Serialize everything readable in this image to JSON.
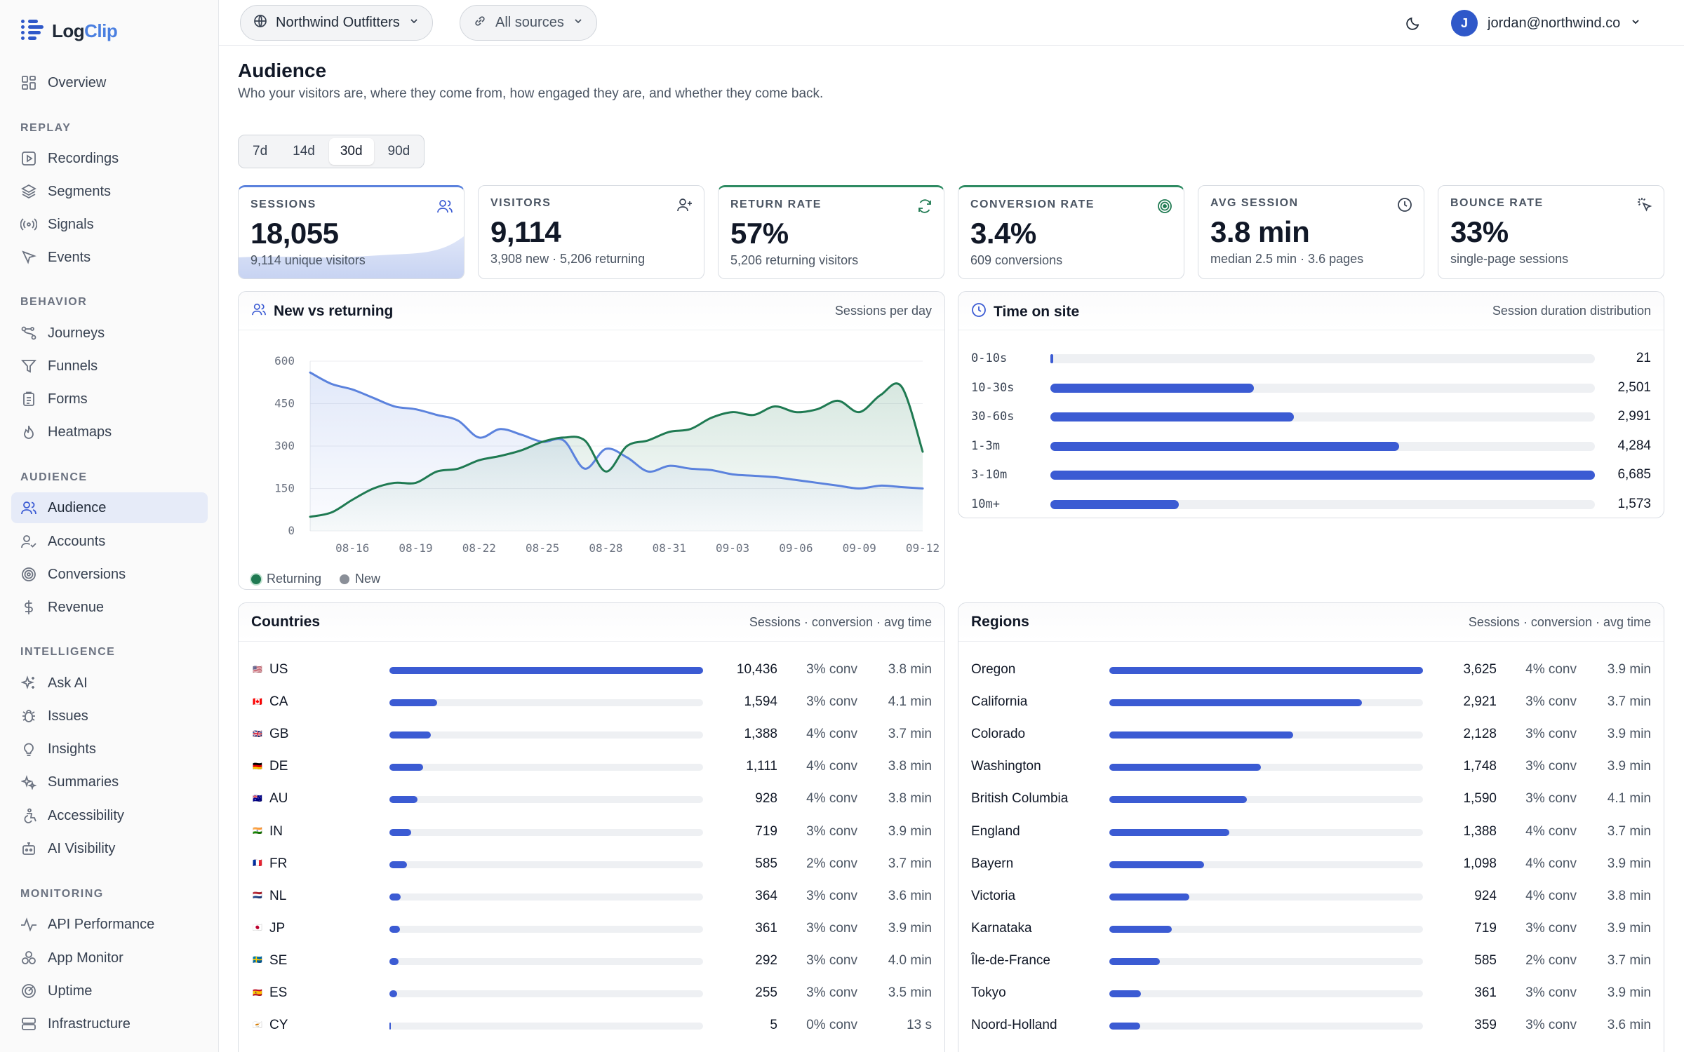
{
  "app": {
    "name_part1": "Log",
    "name_part2": "Clip"
  },
  "sidebar": {
    "overview": "Overview",
    "sections": {
      "replay": "REPLAY",
      "behavior": "BEHAVIOR",
      "audience": "AUDIENCE",
      "intelligence": "INTELLIGENCE",
      "monitoring": "MONITORING"
    },
    "items": {
      "recordings": "Recordings",
      "segments": "Segments",
      "signals": "Signals",
      "events": "Events",
      "journeys": "Journeys",
      "funnels": "Funnels",
      "forms": "Forms",
      "heatmaps": "Heatmaps",
      "audience": "Audience",
      "accounts": "Accounts",
      "conversions": "Conversions",
      "revenue": "Revenue",
      "ask_ai": "Ask AI",
      "issues": "Issues",
      "insights": "Insights",
      "summaries": "Summaries",
      "accessibility": "Accessibility",
      "ai_visibility": "AI Visibility",
      "api_performance": "API Performance",
      "app_monitor": "App Monitor",
      "uptime": "Uptime",
      "infrastructure": "Infrastructure"
    },
    "active_item": "Audience"
  },
  "topbar": {
    "workspace": "Northwind Outfitters",
    "sources": "All sources",
    "user_initial": "J",
    "user_email": "jordan@northwind.co"
  },
  "header": {
    "title": "Audience",
    "subtitle": "Who your visitors are, where they come from, how engaged they are, and whether they come back."
  },
  "range": {
    "options": [
      "7d",
      "14d",
      "30d",
      "90d"
    ],
    "selected": "30d"
  },
  "kpis": [
    {
      "label": "SESSIONS",
      "value": "18,055",
      "sub": "9,114 unique visitors",
      "icon": "users-icon",
      "accent": "#5b82dd"
    },
    {
      "label": "VISITORS",
      "value": "9,114",
      "sub": "3,908 new · 5,206 returning",
      "icon": "user-plus-icon"
    },
    {
      "label": "RETURN RATE",
      "value": "57%",
      "sub": "5,206 returning visitors",
      "icon": "refresh-icon",
      "accent": "#2e8b62"
    },
    {
      "label": "CONVERSION RATE",
      "value": "3.4%",
      "sub": "609 conversions",
      "icon": "target-icon",
      "accent": "#2e8b62"
    },
    {
      "label": "AVG SESSION",
      "value": "3.8 min",
      "sub": "median 2.5 min · 3.6 pages",
      "icon": "clock-icon"
    },
    {
      "label": "BOUNCE RATE",
      "value": "33%",
      "sub": "single-page sessions",
      "icon": "pointer-click-icon"
    }
  ],
  "chart_data": {
    "type": "area",
    "title": "New vs returning",
    "note": "Sessions per day",
    "ylim": [
      0,
      600
    ],
    "yticks": [
      0,
      150,
      300,
      450,
      600
    ],
    "x": [
      "08-14",
      "08-15",
      "08-16",
      "08-17",
      "08-18",
      "08-19",
      "08-20",
      "08-21",
      "08-22",
      "08-23",
      "08-24",
      "08-25",
      "08-26",
      "08-27",
      "08-28",
      "08-29",
      "08-30",
      "08-31",
      "09-01",
      "09-02",
      "09-03",
      "09-04",
      "09-05",
      "09-06",
      "09-07",
      "09-08",
      "09-09",
      "09-10",
      "09-11",
      "09-12"
    ],
    "xticks": [
      "08-16",
      "08-19",
      "08-22",
      "08-25",
      "08-28",
      "08-31",
      "09-03",
      "09-06",
      "09-09",
      "09-12"
    ],
    "series": [
      {
        "name": "Returning",
        "color": "#1f7a52",
        "values": [
          50,
          65,
          110,
          150,
          170,
          170,
          210,
          220,
          250,
          265,
          285,
          315,
          330,
          320,
          210,
          300,
          320,
          350,
          360,
          400,
          420,
          410,
          440,
          420,
          430,
          460,
          420,
          480,
          510,
          280
        ]
      },
      {
        "name": "New",
        "color": "#5b82dd",
        "values": [
          560,
          520,
          500,
          470,
          440,
          430,
          410,
          390,
          330,
          360,
          340,
          315,
          320,
          220,
          290,
          260,
          210,
          230,
          220,
          215,
          200,
          195,
          190,
          180,
          170,
          160,
          150,
          160,
          155,
          150
        ]
      }
    ],
    "grid": true,
    "legend": "bottom-left"
  },
  "time_on_site": {
    "title": "Time on site",
    "note": "Session duration distribution",
    "max": 6685,
    "rows": [
      {
        "label": "0-10s",
        "value": 21,
        "display": "21"
      },
      {
        "label": "10-30s",
        "value": 2501,
        "display": "2,501"
      },
      {
        "label": "30-60s",
        "value": 2991,
        "display": "2,991"
      },
      {
        "label": "1-3m",
        "value": 4284,
        "display": "4,284"
      },
      {
        "label": "3-10m",
        "value": 6685,
        "display": "6,685"
      },
      {
        "label": "10m+",
        "value": 1573,
        "display": "1,573"
      }
    ]
  },
  "countries": {
    "title": "Countries",
    "note": "Sessions · conversion · avg time",
    "max": 10436,
    "rows": [
      {
        "code": "US",
        "flag": "🇺🇸",
        "value": 10436,
        "display": "10,436",
        "conv": "3% conv",
        "time": "3.8 min"
      },
      {
        "code": "CA",
        "flag": "🇨🇦",
        "value": 1594,
        "display": "1,594",
        "conv": "3% conv",
        "time": "4.1 min"
      },
      {
        "code": "GB",
        "flag": "🇬🇧",
        "value": 1388,
        "display": "1,388",
        "conv": "4% conv",
        "time": "3.7 min"
      },
      {
        "code": "DE",
        "flag": "🇩🇪",
        "value": 1111,
        "display": "1,111",
        "conv": "4% conv",
        "time": "3.8 min"
      },
      {
        "code": "AU",
        "flag": "🇦🇺",
        "value": 928,
        "display": "928",
        "conv": "4% conv",
        "time": "3.8 min"
      },
      {
        "code": "IN",
        "flag": "🇮🇳",
        "value": 719,
        "display": "719",
        "conv": "3% conv",
        "time": "3.9 min"
      },
      {
        "code": "FR",
        "flag": "🇫🇷",
        "value": 585,
        "display": "585",
        "conv": "2% conv",
        "time": "3.7 min"
      },
      {
        "code": "NL",
        "flag": "🇳🇱",
        "value": 364,
        "display": "364",
        "conv": "3% conv",
        "time": "3.6 min"
      },
      {
        "code": "JP",
        "flag": "🇯🇵",
        "value": 361,
        "display": "361",
        "conv": "3% conv",
        "time": "3.9 min"
      },
      {
        "code": "SE",
        "flag": "🇸🇪",
        "value": 292,
        "display": "292",
        "conv": "3% conv",
        "time": "4.0 min"
      },
      {
        "code": "ES",
        "flag": "🇪🇸",
        "value": 255,
        "display": "255",
        "conv": "3% conv",
        "time": "3.5 min"
      },
      {
        "code": "CY",
        "flag": "🇨🇾",
        "value": 5,
        "display": "5",
        "conv": "0% conv",
        "time": "13 s"
      }
    ]
  },
  "regions": {
    "title": "Regions",
    "note": "Sessions · conversion · avg time",
    "max": 3625,
    "rows": [
      {
        "name": "Oregon",
        "value": 3625,
        "display": "3,625",
        "conv": "4% conv",
        "time": "3.9 min"
      },
      {
        "name": "California",
        "value": 2921,
        "display": "2,921",
        "conv": "3% conv",
        "time": "3.7 min"
      },
      {
        "name": "Colorado",
        "value": 2128,
        "display": "2,128",
        "conv": "3% conv",
        "time": "3.9 min"
      },
      {
        "name": "Washington",
        "value": 1748,
        "display": "1,748",
        "conv": "3% conv",
        "time": "3.9 min"
      },
      {
        "name": "British Columbia",
        "value": 1590,
        "display": "1,590",
        "conv": "3% conv",
        "time": "4.1 min"
      },
      {
        "name": "England",
        "value": 1388,
        "display": "1,388",
        "conv": "4% conv",
        "time": "3.7 min"
      },
      {
        "name": "Bayern",
        "value": 1098,
        "display": "1,098",
        "conv": "4% conv",
        "time": "3.9 min"
      },
      {
        "name": "Victoria",
        "value": 924,
        "display": "924",
        "conv": "4% conv",
        "time": "3.8 min"
      },
      {
        "name": "Karnataka",
        "value": 719,
        "display": "719",
        "conv": "3% conv",
        "time": "3.9 min"
      },
      {
        "name": "Île-de-France",
        "value": 585,
        "display": "585",
        "conv": "2% conv",
        "time": "3.7 min"
      },
      {
        "name": "Tokyo",
        "value": 361,
        "display": "361",
        "conv": "3% conv",
        "time": "3.9 min"
      },
      {
        "name": "Noord-Holland",
        "value": 359,
        "display": "359",
        "conv": "3% conv",
        "time": "3.6 min"
      }
    ]
  }
}
